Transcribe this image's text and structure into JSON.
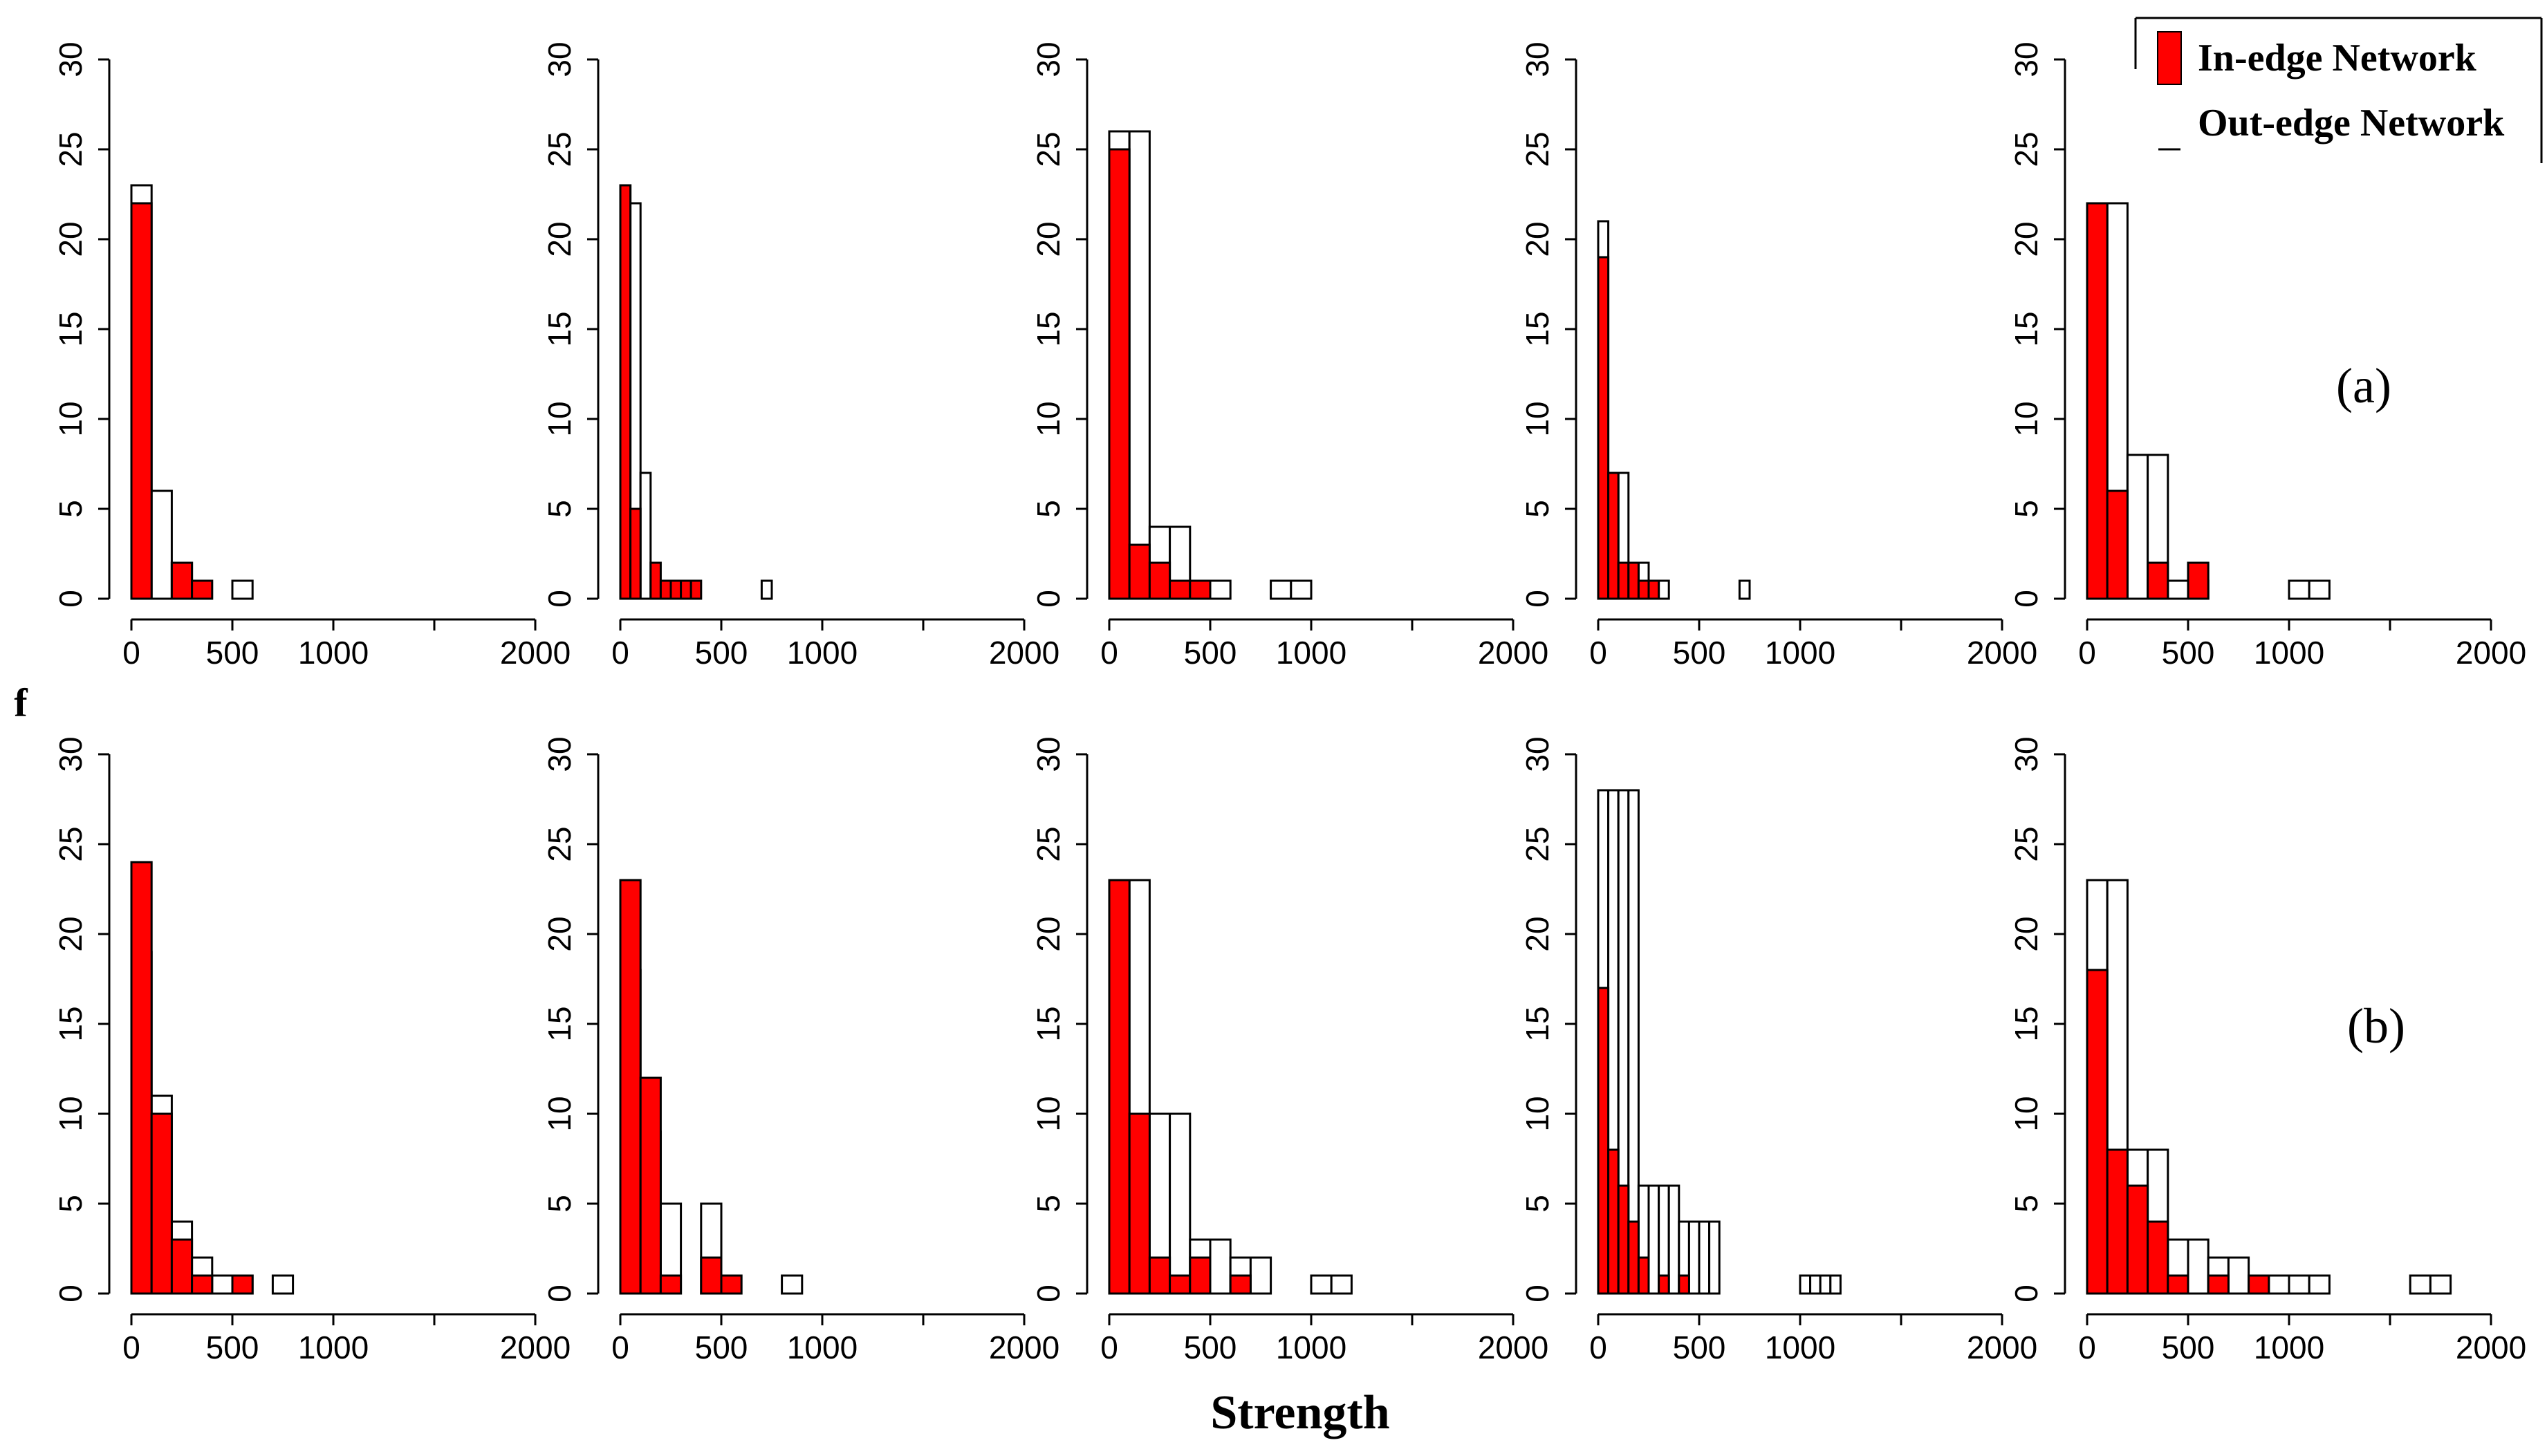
{
  "figure": {
    "xlabel": "Strength",
    "row_labels": [
      "(a)",
      "(b)"
    ],
    "stray_label": "f",
    "legend": {
      "in_label": "In-edge Network",
      "out_label": "Out-edge Network",
      "in_color": "#ff0000",
      "out_color": "#ffffff"
    }
  },
  "chart_data": [
    {
      "type": "bar",
      "row": "a",
      "panel": 1,
      "bin_width": 100,
      "xlim": [
        0,
        2000
      ],
      "ylim": [
        0,
        30
      ],
      "x_ticks": [
        0,
        500,
        1000,
        2000
      ],
      "y_ticks": [
        0,
        5,
        10,
        15,
        20,
        25,
        30
      ],
      "series": [
        {
          "name": "In-edge Network",
          "bins": [
            [
              0,
              22
            ],
            [
              200,
              2
            ],
            [
              300,
              1
            ]
          ]
        },
        {
          "name": "Out-edge Network",
          "bins": [
            [
              0,
              23
            ],
            [
              100,
              6
            ],
            [
              200,
              2
            ],
            [
              500,
              1
            ]
          ]
        }
      ]
    },
    {
      "type": "bar",
      "row": "a",
      "panel": 2,
      "bin_width": 50,
      "xlim": [
        0,
        2000
      ],
      "ylim": [
        0,
        30
      ],
      "x_ticks": [
        0,
        500,
        1000,
        2000
      ],
      "y_ticks": [
        0,
        5,
        10,
        15,
        20,
        25,
        30
      ],
      "series": [
        {
          "name": "In-edge Network",
          "bins": [
            [
              0,
              23
            ],
            [
              50,
              5
            ],
            [
              150,
              2
            ],
            [
              200,
              1
            ],
            [
              250,
              1
            ],
            [
              300,
              1
            ],
            [
              350,
              1
            ]
          ]
        },
        {
          "name": "Out-edge Network",
          "bins": [
            [
              0,
              23
            ],
            [
              50,
              22
            ],
            [
              100,
              7
            ],
            [
              200,
              1
            ],
            [
              250,
              1
            ],
            [
              300,
              1
            ],
            [
              700,
              1
            ]
          ]
        }
      ]
    },
    {
      "type": "bar",
      "row": "a",
      "panel": 3,
      "bin_width": 100,
      "xlim": [
        0,
        2000
      ],
      "ylim": [
        0,
        30
      ],
      "x_ticks": [
        0,
        500,
        1000,
        2000
      ],
      "y_ticks": [
        0,
        5,
        10,
        15,
        20,
        25,
        30
      ],
      "series": [
        {
          "name": "In-edge Network",
          "bins": [
            [
              0,
              25
            ],
            [
              100,
              3
            ],
            [
              200,
              2
            ],
            [
              300,
              1
            ],
            [
              400,
              1
            ]
          ]
        },
        {
          "name": "Out-edge Network",
          "bins": [
            [
              0,
              26
            ],
            [
              100,
              26
            ],
            [
              200,
              4
            ],
            [
              300,
              4
            ],
            [
              500,
              1
            ],
            [
              800,
              1
            ],
            [
              900,
              1
            ]
          ]
        }
      ]
    },
    {
      "type": "bar",
      "row": "a",
      "panel": 4,
      "bin_width": 50,
      "xlim": [
        0,
        2000
      ],
      "ylim": [
        0,
        30
      ],
      "x_ticks": [
        0,
        500,
        1000,
        2000
      ],
      "y_ticks": [
        0,
        5,
        10,
        15,
        20,
        25,
        30
      ],
      "series": [
        {
          "name": "In-edge Network",
          "bins": [
            [
              0,
              19
            ],
            [
              50,
              7
            ],
            [
              100,
              2
            ],
            [
              150,
              2
            ],
            [
              200,
              1
            ],
            [
              250,
              1
            ]
          ]
        },
        {
          "name": "Out-edge Network",
          "bins": [
            [
              0,
              21
            ],
            [
              50,
              7
            ],
            [
              100,
              7
            ],
            [
              150,
              2
            ],
            [
              200,
              2
            ],
            [
              300,
              1
            ],
            [
              700,
              1
            ]
          ]
        }
      ]
    },
    {
      "type": "bar",
      "row": "a",
      "panel": 5,
      "bin_width": 100,
      "xlim": [
        0,
        2000
      ],
      "ylim": [
        0,
        30
      ],
      "x_ticks": [
        0,
        500,
        1000,
        2000
      ],
      "y_ticks": [
        0,
        5,
        10,
        15,
        20,
        25,
        30
      ],
      "series": [
        {
          "name": "In-edge Network",
          "bins": [
            [
              0,
              22
            ],
            [
              100,
              6
            ],
            [
              300,
              2
            ],
            [
              500,
              2
            ]
          ]
        },
        {
          "name": "Out-edge Network",
          "bins": [
            [
              0,
              22
            ],
            [
              100,
              22
            ],
            [
              200,
              8
            ],
            [
              300,
              8
            ],
            [
              400,
              1
            ],
            [
              500,
              1
            ],
            [
              1000,
              1
            ],
            [
              1100,
              1
            ]
          ]
        }
      ]
    },
    {
      "type": "bar",
      "row": "b",
      "panel": 1,
      "bin_width": 100,
      "xlim": [
        0,
        2000
      ],
      "ylim": [
        0,
        30
      ],
      "x_ticks": [
        0,
        500,
        1000,
        2000
      ],
      "y_ticks": [
        0,
        5,
        10,
        15,
        20,
        25,
        30
      ],
      "series": [
        {
          "name": "In-edge Network",
          "bins": [
            [
              0,
              24
            ],
            [
              100,
              10
            ],
            [
              200,
              3
            ],
            [
              300,
              1
            ],
            [
              500,
              1
            ]
          ]
        },
        {
          "name": "Out-edge Network",
          "bins": [
            [
              0,
              19
            ],
            [
              100,
              11
            ],
            [
              200,
              4
            ],
            [
              300,
              2
            ],
            [
              400,
              1
            ],
            [
              500,
              1
            ],
            [
              700,
              1
            ]
          ]
        }
      ]
    },
    {
      "type": "bar",
      "row": "b",
      "panel": 2,
      "bin_width": 100,
      "xlim": [
        0,
        2000
      ],
      "ylim": [
        0,
        30
      ],
      "x_ticks": [
        0,
        500,
        1000,
        2000
      ],
      "y_ticks": [
        0,
        5,
        10,
        15,
        20,
        25,
        30
      ],
      "series": [
        {
          "name": "In-edge Network",
          "bins": [
            [
              0,
              23
            ],
            [
              100,
              12
            ],
            [
              200,
              1
            ],
            [
              400,
              2
            ],
            [
              500,
              1
            ]
          ]
        },
        {
          "name": "Out-edge Network",
          "bins": [
            [
              0,
              18
            ],
            [
              100,
              9
            ],
            [
              200,
              5
            ],
            [
              400,
              5
            ],
            [
              800,
              1
            ]
          ]
        }
      ]
    },
    {
      "type": "bar",
      "row": "b",
      "panel": 3,
      "bin_width": 100,
      "xlim": [
        0,
        2000
      ],
      "ylim": [
        0,
        30
      ],
      "x_ticks": [
        0,
        500,
        1000,
        2000
      ],
      "y_ticks": [
        0,
        5,
        10,
        15,
        20,
        25,
        30
      ],
      "series": [
        {
          "name": "In-edge Network",
          "bins": [
            [
              0,
              23
            ],
            [
              100,
              10
            ],
            [
              200,
              2
            ],
            [
              300,
              1
            ],
            [
              400,
              2
            ],
            [
              600,
              1
            ]
          ]
        },
        {
          "name": "Out-edge Network",
          "bins": [
            [
              0,
              23
            ],
            [
              100,
              23
            ],
            [
              200,
              10
            ],
            [
              300,
              10
            ],
            [
              400,
              3
            ],
            [
              500,
              3
            ],
            [
              600,
              2
            ],
            [
              700,
              2
            ],
            [
              1000,
              1
            ],
            [
              1100,
              1
            ]
          ]
        }
      ]
    },
    {
      "type": "bar",
      "row": "b",
      "panel": 4,
      "bin_width": 50,
      "xlim": [
        0,
        2000
      ],
      "ylim": [
        0,
        30
      ],
      "x_ticks": [
        0,
        500,
        1000,
        2000
      ],
      "y_ticks": [
        0,
        5,
        10,
        15,
        20,
        25,
        30
      ],
      "series": [
        {
          "name": "In-edge Network",
          "bins": [
            [
              0,
              17
            ],
            [
              50,
              8
            ],
            [
              100,
              6
            ],
            [
              150,
              4
            ],
            [
              200,
              2
            ],
            [
              300,
              1
            ],
            [
              400,
              1
            ]
          ]
        },
        {
          "name": "Out-edge Network",
          "bins": [
            [
              0,
              28
            ],
            [
              50,
              28
            ],
            [
              100,
              28
            ],
            [
              150,
              28
            ],
            [
              200,
              6
            ],
            [
              250,
              6
            ],
            [
              300,
              6
            ],
            [
              350,
              6
            ],
            [
              400,
              4
            ],
            [
              450,
              4
            ],
            [
              500,
              4
            ],
            [
              550,
              4
            ],
            [
              1000,
              1
            ],
            [
              1050,
              1
            ],
            [
              1100,
              1
            ],
            [
              1150,
              1
            ]
          ]
        }
      ]
    },
    {
      "type": "bar",
      "row": "b",
      "panel": 5,
      "bin_width": 100,
      "xlim": [
        0,
        2000
      ],
      "ylim": [
        0,
        30
      ],
      "x_ticks": [
        0,
        500,
        1000,
        2000
      ],
      "y_ticks": [
        0,
        5,
        10,
        15,
        20,
        25,
        30
      ],
      "series": [
        {
          "name": "In-edge Network",
          "bins": [
            [
              0,
              18
            ],
            [
              100,
              8
            ],
            [
              200,
              6
            ],
            [
              300,
              4
            ],
            [
              400,
              1
            ],
            [
              600,
              1
            ],
            [
              800,
              1
            ]
          ]
        },
        {
          "name": "Out-edge Network",
          "bins": [
            [
              0,
              23
            ],
            [
              100,
              23
            ],
            [
              200,
              8
            ],
            [
              300,
              8
            ],
            [
              400,
              3
            ],
            [
              500,
              3
            ],
            [
              600,
              2
            ],
            [
              700,
              2
            ],
            [
              800,
              1
            ],
            [
              900,
              1
            ],
            [
              1000,
              1
            ],
            [
              1100,
              1
            ],
            [
              1600,
              1
            ],
            [
              1700,
              1
            ]
          ]
        }
      ]
    }
  ]
}
